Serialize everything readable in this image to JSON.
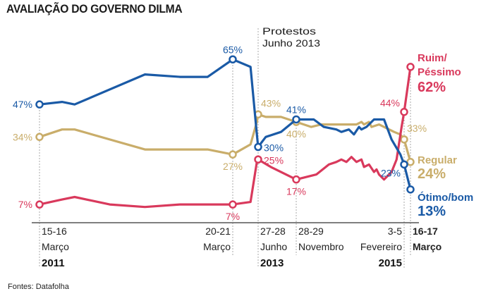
{
  "title": "AVALIAÇÃO DO GOVERNO DILMA",
  "source": "Fontes: Datafolha",
  "annotation": {
    "line1": "Protestos",
    "line2": "Junho 2013"
  },
  "colors": {
    "otimo": "#1a5aa6",
    "regular": "#c9ad6a",
    "ruim": "#d9395c",
    "axis": "#555555",
    "grid": "#aaaaaa",
    "text": "#222222"
  },
  "chart_data": {
    "type": "line",
    "title": "AVALIAÇÃO DO GOVERNO DILMA",
    "xlabel": "",
    "ylabel": "",
    "ylim": [
      0,
      70
    ],
    "grid": false,
    "x_ticks": [
      {
        "t": 0,
        "line1": "15-16",
        "line2": "Março",
        "year": "2011",
        "align": "left"
      },
      {
        "t": 77,
        "line1": "20-21",
        "line2": "Março",
        "year": "",
        "align": "right"
      },
      {
        "t": 87,
        "line1": "27-28",
        "line2": "Junho",
        "year": "2013",
        "align": "left"
      },
      {
        "t": 102,
        "line1": "28-29",
        "line2": "Novembro",
        "year": "",
        "align": "left"
      },
      {
        "t": 145,
        "line1": "3-5",
        "line2": "Fevereiro",
        "year": "2015",
        "align": "right"
      },
      {
        "t": 147.5,
        "line1": "16-17",
        "line2": "Março",
        "year": "",
        "align": "left",
        "bold": true
      }
    ],
    "series": [
      {
        "name": "Ótimo/bom",
        "key": "otimo",
        "end_label": [
          "Ótimo/bom",
          "13%"
        ],
        "points": [
          [
            0,
            47
          ],
          [
            9,
            48
          ],
          [
            14,
            47
          ],
          [
            42,
            59
          ],
          [
            56,
            58
          ],
          [
            67,
            58
          ],
          [
            77,
            65
          ],
          [
            84,
            62
          ],
          [
            86.5,
            35
          ],
          [
            87,
            30
          ],
          [
            90,
            34
          ],
          [
            96,
            36
          ],
          [
            102,
            41
          ],
          [
            109,
            41
          ],
          [
            113,
            38
          ],
          [
            118,
            37
          ],
          [
            120,
            36
          ],
          [
            123,
            37
          ],
          [
            125,
            35
          ],
          [
            127,
            38
          ],
          [
            128,
            37
          ],
          [
            130,
            38
          ],
          [
            133,
            41
          ],
          [
            137,
            41
          ],
          [
            140,
            33
          ],
          [
            143.5,
            27
          ],
          [
            145,
            23
          ],
          [
            147.5,
            13
          ]
        ],
        "labels": [
          {
            "t": 0,
            "v": 47,
            "text": "47%",
            "pos": "left"
          },
          {
            "t": 77,
            "v": 65,
            "text": "65%",
            "pos": "top"
          },
          {
            "t": 87,
            "v": 30,
            "text": "30%",
            "pos": "right"
          },
          {
            "t": 102,
            "v": 41,
            "text": "41%",
            "pos": "top"
          },
          {
            "t": 145,
            "v": 23,
            "text": "23%",
            "pos": "bottomleft"
          }
        ]
      },
      {
        "name": "Regular",
        "key": "regular",
        "end_label": [
          "Regular",
          "24%"
        ],
        "points": [
          [
            0,
            34
          ],
          [
            9,
            37
          ],
          [
            14,
            37
          ],
          [
            42,
            29
          ],
          [
            56,
            29
          ],
          [
            67,
            29
          ],
          [
            77,
            27
          ],
          [
            84,
            31
          ],
          [
            86.5,
            40
          ],
          [
            87,
            43
          ],
          [
            90,
            42
          ],
          [
            96,
            42
          ],
          [
            102,
            40
          ],
          [
            108,
            38
          ],
          [
            112,
            39
          ],
          [
            120,
            39
          ],
          [
            126,
            39
          ],
          [
            128,
            40
          ],
          [
            129,
            39
          ],
          [
            131,
            40
          ],
          [
            132,
            38
          ],
          [
            135,
            39
          ],
          [
            141,
            36
          ],
          [
            143.5,
            35
          ],
          [
            145,
            33
          ],
          [
            147.5,
            24
          ]
        ],
        "labels": [
          {
            "t": 0,
            "v": 34,
            "text": "34%",
            "pos": "left"
          },
          {
            "t": 77,
            "v": 27,
            "text": "27%",
            "pos": "bottom"
          },
          {
            "t": 87,
            "v": 43,
            "text": "43%",
            "pos": "topright"
          },
          {
            "t": 102,
            "v": 40,
            "text": "40%",
            "pos": "bottom"
          },
          {
            "t": 145,
            "v": 33,
            "text": "33%",
            "pos": "topright"
          }
        ]
      },
      {
        "name": "Ruim/Péssimo",
        "key": "ruim",
        "end_label": [
          "Ruim/",
          "Péssimo",
          "62%"
        ],
        "points": [
          [
            0,
            7
          ],
          [
            9,
            9
          ],
          [
            14,
            10
          ],
          [
            28,
            7
          ],
          [
            42,
            6
          ],
          [
            56,
            7
          ],
          [
            67,
            7
          ],
          [
            77,
            7
          ],
          [
            84,
            8
          ],
          [
            86.5,
            24
          ],
          [
            87,
            25
          ],
          [
            92,
            22
          ],
          [
            102,
            17
          ],
          [
            110,
            19
          ],
          [
            115,
            23
          ],
          [
            118,
            24
          ],
          [
            120,
            25
          ],
          [
            122,
            24
          ],
          [
            124,
            26
          ],
          [
            126,
            24
          ],
          [
            128,
            25
          ],
          [
            129,
            22
          ],
          [
            131,
            23
          ],
          [
            133,
            20
          ],
          [
            134,
            21
          ],
          [
            135,
            19
          ],
          [
            137,
            17
          ],
          [
            140,
            20
          ],
          [
            142,
            25
          ],
          [
            144,
            38
          ],
          [
            145,
            44
          ],
          [
            147.5,
            62
          ]
        ],
        "labels": [
          {
            "t": 0,
            "v": 7,
            "text": "7%",
            "pos": "left"
          },
          {
            "t": 77,
            "v": 7,
            "text": "7%",
            "pos": "bottom"
          },
          {
            "t": 87,
            "v": 25,
            "text": "25%",
            "pos": "right"
          },
          {
            "t": 102,
            "v": 17,
            "text": "17%",
            "pos": "bottom"
          },
          {
            "t": 145,
            "v": 44,
            "text": "44%",
            "pos": "topleft"
          }
        ]
      }
    ]
  }
}
